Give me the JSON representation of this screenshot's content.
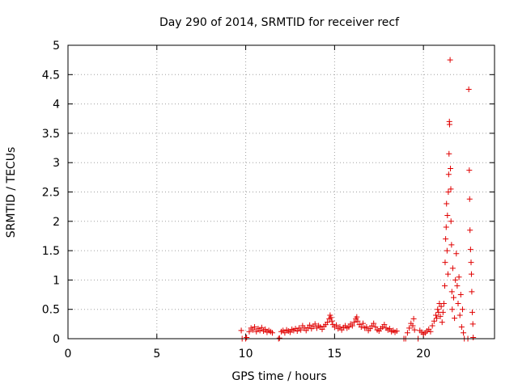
{
  "chart_data": {
    "type": "scatter",
    "title": "Day 290 of 2014, SRMTID for receiver recf",
    "xlabel": "GPS time / hours",
    "ylabel": "SRMTID / TECUs",
    "xlim": [
      0,
      24
    ],
    "ylim": [
      0,
      5
    ],
    "x_ticks": [
      "0",
      "5",
      "10",
      "15",
      "20"
    ],
    "y_ticks": [
      "0",
      "0.5",
      "1",
      "1.5",
      "2",
      "2.5",
      "3",
      "3.5",
      "4",
      "4.5",
      "5"
    ],
    "grid": true,
    "marker": "+",
    "color": "#e00000",
    "series": [
      {
        "name": "SRMTID",
        "points": [
          [
            9.75,
            0.14
          ],
          [
            9.8,
            0.0
          ],
          [
            10.0,
            0.0
          ],
          [
            10.05,
            0.02
          ],
          [
            10.2,
            0.12
          ],
          [
            10.3,
            0.18
          ],
          [
            10.4,
            0.15
          ],
          [
            10.5,
            0.2
          ],
          [
            10.6,
            0.12
          ],
          [
            10.7,
            0.17
          ],
          [
            10.8,
            0.14
          ],
          [
            10.9,
            0.19
          ],
          [
            11.0,
            0.13
          ],
          [
            11.1,
            0.16
          ],
          [
            11.2,
            0.11
          ],
          [
            11.3,
            0.14
          ],
          [
            11.4,
            0.12
          ],
          [
            11.5,
            0.1
          ],
          [
            11.85,
            0.0
          ],
          [
            11.9,
            0.01
          ],
          [
            12.0,
            0.12
          ],
          [
            12.1,
            0.14
          ],
          [
            12.2,
            0.1
          ],
          [
            12.3,
            0.15
          ],
          [
            12.4,
            0.13
          ],
          [
            12.5,
            0.11
          ],
          [
            12.6,
            0.16
          ],
          [
            12.7,
            0.14
          ],
          [
            12.8,
            0.17
          ],
          [
            12.9,
            0.13
          ],
          [
            13.0,
            0.18
          ],
          [
            13.1,
            0.15
          ],
          [
            13.2,
            0.22
          ],
          [
            13.3,
            0.18
          ],
          [
            13.4,
            0.14
          ],
          [
            13.5,
            0.19
          ],
          [
            13.6,
            0.23
          ],
          [
            13.7,
            0.17
          ],
          [
            13.8,
            0.21
          ],
          [
            13.9,
            0.25
          ],
          [
            14.0,
            0.18
          ],
          [
            14.1,
            0.22
          ],
          [
            14.2,
            0.2
          ],
          [
            14.3,
            0.16
          ],
          [
            14.4,
            0.21
          ],
          [
            14.5,
            0.24
          ],
          [
            14.6,
            0.28
          ],
          [
            14.7,
            0.34
          ],
          [
            14.75,
            0.4
          ],
          [
            14.8,
            0.36
          ],
          [
            14.85,
            0.3
          ],
          [
            14.9,
            0.24
          ],
          [
            15.0,
            0.2
          ],
          [
            15.1,
            0.23
          ],
          [
            15.2,
            0.17
          ],
          [
            15.3,
            0.2
          ],
          [
            15.4,
            0.15
          ],
          [
            15.5,
            0.19
          ],
          [
            15.6,
            0.22
          ],
          [
            15.7,
            0.18
          ],
          [
            15.8,
            0.2
          ],
          [
            15.9,
            0.25
          ],
          [
            16.0,
            0.22
          ],
          [
            16.1,
            0.28
          ],
          [
            16.2,
            0.34
          ],
          [
            16.25,
            0.37
          ],
          [
            16.3,
            0.3
          ],
          [
            16.4,
            0.24
          ],
          [
            16.5,
            0.2
          ],
          [
            16.6,
            0.26
          ],
          [
            16.7,
            0.18
          ],
          [
            16.8,
            0.2
          ],
          [
            16.9,
            0.14
          ],
          [
            17.0,
            0.17
          ],
          [
            17.1,
            0.22
          ],
          [
            17.2,
            0.26
          ],
          [
            17.3,
            0.2
          ],
          [
            17.4,
            0.15
          ],
          [
            17.5,
            0.13
          ],
          [
            17.6,
            0.17
          ],
          [
            17.7,
            0.2
          ],
          [
            17.8,
            0.24
          ],
          [
            17.9,
            0.18
          ],
          [
            18.0,
            0.15
          ],
          [
            18.1,
            0.17
          ],
          [
            18.2,
            0.12
          ],
          [
            18.3,
            0.14
          ],
          [
            18.4,
            0.11
          ],
          [
            18.5,
            0.13
          ],
          [
            18.9,
            0.0
          ],
          [
            19.0,
            0.0
          ],
          [
            19.1,
            0.1
          ],
          [
            19.2,
            0.18
          ],
          [
            19.3,
            0.26
          ],
          [
            19.4,
            0.22
          ],
          [
            19.45,
            0.34
          ],
          [
            19.5,
            0.15
          ],
          [
            19.7,
            0.0
          ],
          [
            19.8,
            0.14
          ],
          [
            19.9,
            0.11
          ],
          [
            20.0,
            0.08
          ],
          [
            20.1,
            0.1
          ],
          [
            20.2,
            0.13
          ],
          [
            20.3,
            0.16
          ],
          [
            20.4,
            0.12
          ],
          [
            20.5,
            0.22
          ],
          [
            20.6,
            0.3
          ],
          [
            20.7,
            0.4
          ],
          [
            20.75,
            0.35
          ],
          [
            20.8,
            0.5
          ],
          [
            20.85,
            0.45
          ],
          [
            20.9,
            0.6
          ],
          [
            20.95,
            0.38
          ],
          [
            21.0,
            0.55
          ],
          [
            21.05,
            0.28
          ],
          [
            21.1,
            0.45
          ],
          [
            21.15,
            0.6
          ],
          [
            21.2,
            0.9
          ],
          [
            21.22,
            1.3
          ],
          [
            21.25,
            1.7
          ],
          [
            21.28,
            1.9
          ],
          [
            21.3,
            2.3
          ],
          [
            21.33,
            1.5
          ],
          [
            21.35,
            2.1
          ],
          [
            21.38,
            1.1
          ],
          [
            21.4,
            2.5
          ],
          [
            21.42,
            2.8
          ],
          [
            21.44,
            3.15
          ],
          [
            21.46,
            3.7
          ],
          [
            21.47,
            3.65
          ],
          [
            21.5,
            4.75
          ],
          [
            21.52,
            2.9
          ],
          [
            21.54,
            2.55
          ],
          [
            21.55,
            2.0
          ],
          [
            21.58,
            1.6
          ],
          [
            21.6,
            0.8
          ],
          [
            21.62,
            0.5
          ],
          [
            21.65,
            1.2
          ],
          [
            21.7,
            0.7
          ],
          [
            21.75,
            0.35
          ],
          [
            21.8,
            1.0
          ],
          [
            21.85,
            1.45
          ],
          [
            21.9,
            0.9
          ],
          [
            21.95,
            0.6
          ],
          [
            22.0,
            1.05
          ],
          [
            22.05,
            0.4
          ],
          [
            22.1,
            0.75
          ],
          [
            22.15,
            0.2
          ],
          [
            22.2,
            0.5
          ],
          [
            22.25,
            0.1
          ],
          [
            22.3,
            0.0
          ],
          [
            22.5,
            0.0
          ],
          [
            22.55,
            4.25
          ],
          [
            22.58,
            2.87
          ],
          [
            22.6,
            2.38
          ],
          [
            22.62,
            1.85
          ],
          [
            22.65,
            1.52
          ],
          [
            22.68,
            1.3
          ],
          [
            22.7,
            1.1
          ],
          [
            22.72,
            0.8
          ],
          [
            22.75,
            0.45
          ],
          [
            22.78,
            0.25
          ],
          [
            22.8,
            0.02
          ]
        ]
      }
    ]
  }
}
